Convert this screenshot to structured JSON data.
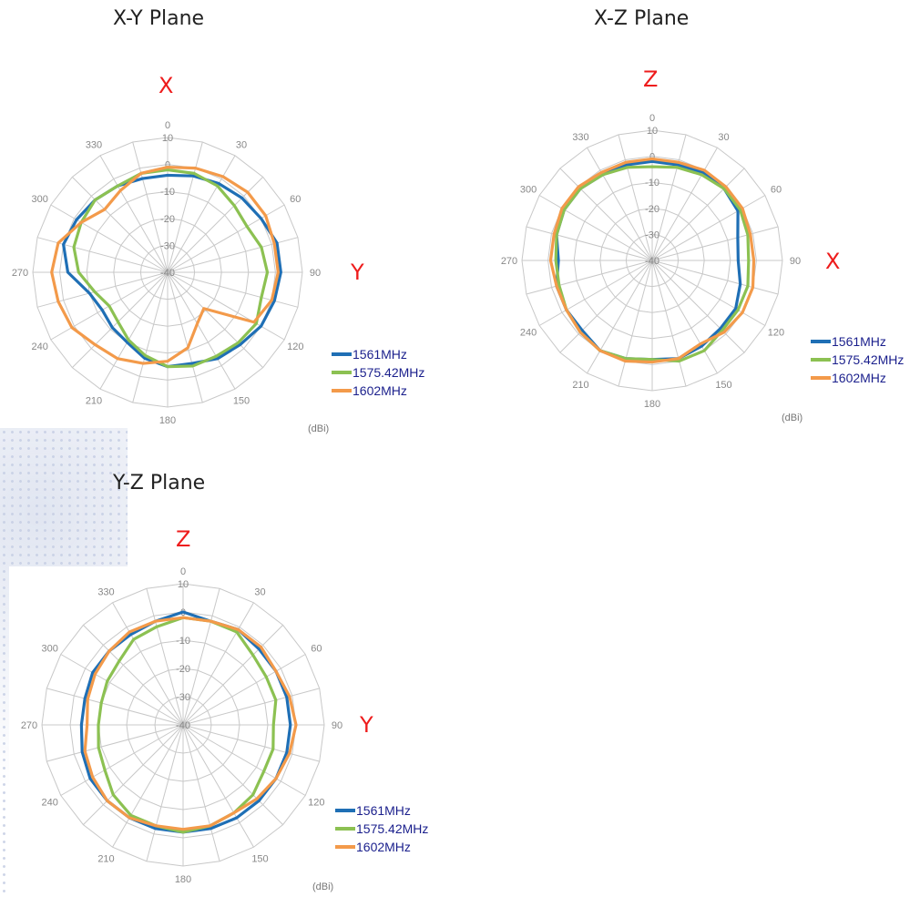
{
  "colors": {
    "s1561": "#1f6fb5",
    "s1575": "#8cc152",
    "s1602": "#f39a4a",
    "axis_letter": "#ee1c1c",
    "legend_text": "#1a1f8c",
    "grid": "#c8c8c8",
    "tick": "#888888"
  },
  "chart_data": [
    {
      "type": "polar-line",
      "plane_title": "X-Y Plane",
      "top_label": "X",
      "right_label": "Y",
      "unit": "(dBi)",
      "angle_ticks": [
        "0",
        "30",
        "60",
        "90",
        "120",
        "150",
        "180",
        "210",
        "240",
        "270",
        "300",
        "330"
      ],
      "radial_ticks": [
        "10",
        "0",
        "-10",
        "-20",
        "-30",
        "-40"
      ],
      "rlim": [
        -40,
        10
      ],
      "legend_position": "bottom-right",
      "angles": [
        0,
        15,
        30,
        45,
        60,
        75,
        90,
        105,
        120,
        135,
        150,
        165,
        180,
        195,
        210,
        225,
        240,
        255,
        270,
        285,
        300,
        315,
        330,
        345
      ],
      "series": [
        {
          "name": "1561MHz",
          "color_key": "s1561",
          "values": [
            -4,
            -3,
            -2,
            -1,
            0,
            2,
            2,
            1,
            0,
            -2,
            -3,
            -5,
            -5,
            -7,
            -10,
            -11,
            -12,
            -10,
            -3,
            0,
            -1,
            -2,
            -3,
            -4
          ]
        },
        {
          "name": "1575.42MHz",
          "color_key": "s1575",
          "values": [
            -2,
            -2,
            -3,
            -5,
            -6,
            -4,
            -3,
            -4,
            -2,
            -3,
            -4,
            -4,
            -5,
            -8,
            -11,
            -14,
            -15,
            -12,
            -7,
            -4,
            -3,
            -2,
            -3,
            -2
          ]
        },
        {
          "name": "1602MHz",
          "color_key": "s1602",
          "values": [
            -1,
            0,
            1,
            2,
            2,
            1,
            1,
            0,
            -3,
            -21,
            -18,
            -11,
            -7,
            -5,
            -3,
            -2,
            1,
            2,
            3,
            2,
            -3,
            -7,
            -5,
            -2
          ]
        }
      ]
    },
    {
      "type": "polar-line",
      "plane_title": "X-Z Plane",
      "top_label": "Z",
      "right_label": "X",
      "unit": "(dBi)",
      "angle_ticks": [
        "0",
        "30",
        "60",
        "90",
        "120",
        "150",
        "180",
        "210",
        "240",
        "270",
        "300",
        "330"
      ],
      "radial_ticks": [
        "10",
        "0",
        "-10",
        "-20",
        "-30",
        "-40"
      ],
      "rlim": [
        -40,
        10
      ],
      "legend_position": "bottom-right",
      "angles": [
        0,
        15,
        30,
        45,
        60,
        75,
        90,
        105,
        120,
        135,
        150,
        165,
        180,
        195,
        210,
        225,
        240,
        255,
        270,
        285,
        300,
        315,
        330,
        345
      ],
      "series": [
        {
          "name": "1561MHz",
          "color_key": "s1561",
          "values": [
            -2,
            -2,
            -1,
            -1,
            -2,
            -6,
            -7,
            -5,
            -3,
            -3,
            -2,
            -1,
            -2,
            -1,
            0,
            -2,
            -2,
            -2,
            -4,
            -2,
            -1,
            -1,
            -2,
            -2
          ]
        },
        {
          "name": "1575.42MHz",
          "color_key": "s1575",
          "values": [
            -4,
            -3,
            -2,
            -1,
            -1,
            -2,
            -3,
            -2,
            -2,
            -2,
            0,
            0,
            -2,
            -1,
            0,
            -1,
            -2,
            -3,
            -3,
            -2,
            -1,
            -1,
            -2,
            -3
          ]
        },
        {
          "name": "1602MHz",
          "color_key": "s1602",
          "values": [
            -1,
            -1,
            0,
            0,
            0,
            -1,
            -1,
            0,
            0,
            -1,
            -3,
            -1,
            -1,
            0,
            0,
            -1,
            -2,
            -2,
            -1,
            -1,
            0,
            0,
            -1,
            -1
          ]
        }
      ]
    },
    {
      "type": "polar-line",
      "plane_title": "Y-Z Plane",
      "top_label": "Z",
      "right_label": "Y",
      "unit": "(dBi)",
      "angle_ticks": [
        "0",
        "30",
        "60",
        "90",
        "120",
        "150",
        "180",
        "210",
        "240",
        "270",
        "300",
        "330"
      ],
      "radial_ticks": [
        "10",
        "0",
        "-10",
        "-20",
        "-30",
        "-40"
      ],
      "rlim": [
        -40,
        10
      ],
      "legend_position": "bottom-right",
      "angles": [
        0,
        15,
        30,
        45,
        60,
        75,
        90,
        105,
        120,
        135,
        150,
        165,
        180,
        195,
        210,
        225,
        240,
        255,
        270,
        285,
        300,
        315,
        330,
        345
      ],
      "series": [
        {
          "name": "1561MHz",
          "color_key": "s1561",
          "values": [
            0,
            -2,
            -1,
            -2,
            -2,
            -2,
            -2,
            -2,
            -2,
            -2,
            -2,
            -2,
            -2,
            -2,
            -2,
            -2,
            -2,
            -3,
            -4,
            -4,
            -3,
            -3,
            -3,
            -2
          ]
        },
        {
          "name": "1575.42MHz",
          "color_key": "s1575",
          "values": [
            -2,
            -2,
            -2,
            -5,
            -6,
            -6,
            -8,
            -7,
            -7,
            -5,
            -4,
            -3,
            -2,
            -3,
            -3,
            -5,
            -8,
            -9,
            -10,
            -10,
            -9,
            -8,
            -5,
            -4
          ]
        },
        {
          "name": "1602MHz",
          "color_key": "s1602",
          "values": [
            -2,
            -2,
            -1,
            -1,
            -2,
            -1,
            0,
            -1,
            -2,
            -3,
            -4,
            -3,
            -3,
            -3,
            -2,
            -2,
            -3,
            -4,
            -6,
            -5,
            -4,
            -3,
            -2,
            -2
          ]
        }
      ]
    }
  ]
}
